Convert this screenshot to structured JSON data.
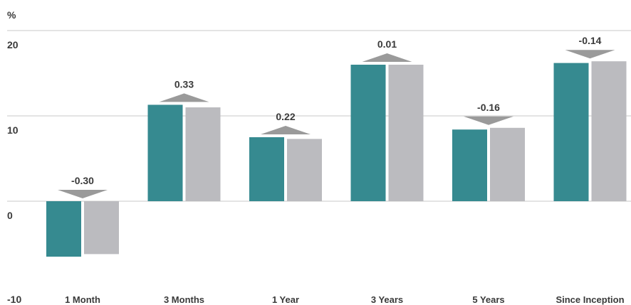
{
  "chart_data": {
    "type": "bar",
    "ylabel": "%",
    "ylim": [
      -10,
      20
    ],
    "yticks": [
      -10,
      0,
      10,
      20
    ],
    "grid": true,
    "categories": [
      "1 Month",
      "3 Months",
      "1 Year",
      "3 Years",
      "5 Years",
      "Since Inception"
    ],
    "series": [
      {
        "values": [
          -6.5,
          11.3,
          7.5,
          16.0,
          8.4,
          16.2
        ],
        "color": "#368a90"
      },
      {
        "values": [
          -6.2,
          11.0,
          7.3,
          16.0,
          8.6,
          16.4
        ],
        "color": "#bbbbbf"
      }
    ],
    "differences": [
      {
        "value": -0.3,
        "label": "-0.30",
        "direction": "down"
      },
      {
        "value": 0.33,
        "label": "0.33",
        "direction": "up"
      },
      {
        "value": 0.22,
        "label": "0.22",
        "direction": "up"
      },
      {
        "value": 0.01,
        "label": "0.01",
        "direction": "up"
      },
      {
        "value": -0.16,
        "label": "-0.16",
        "direction": "down"
      },
      {
        "value": -0.14,
        "label": "-0.14",
        "direction": "down"
      }
    ],
    "gridline_color": "#c8c8c8",
    "arrow_color": "#9a9a9a"
  }
}
